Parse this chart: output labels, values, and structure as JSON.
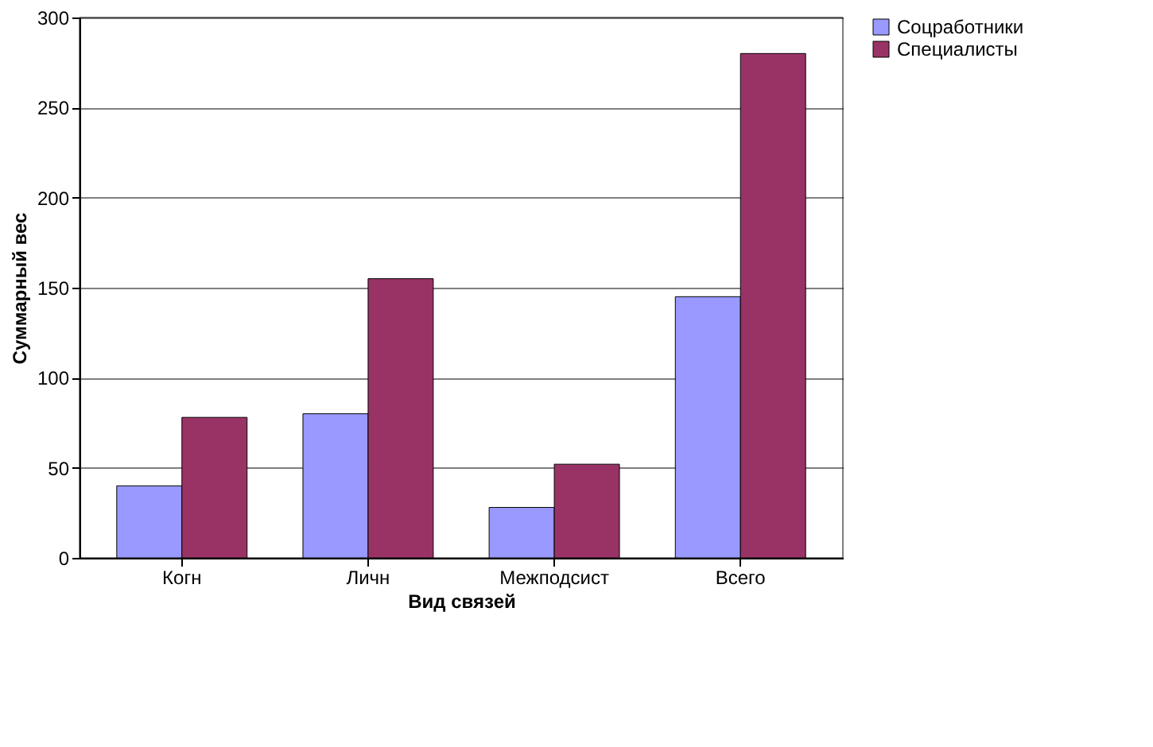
{
  "chart_data": {
    "type": "bar",
    "xlabel": "Вид связей",
    "ylabel": "Суммарный вес",
    "categories": [
      "Когн",
      "Личн",
      "Межподсист",
      "Всего"
    ],
    "series": [
      {
        "name": "Соцработники",
        "color": "#9999ff",
        "values": [
          40,
          80,
          28,
          145
        ]
      },
      {
        "name": "Специалисты",
        "color": "#993366",
        "values": [
          78,
          155,
          52,
          280
        ]
      }
    ],
    "ylim": [
      0,
      300
    ],
    "yticks": [
      0,
      50,
      100,
      150,
      200,
      250,
      300
    ],
    "grid": "y",
    "legend": "right"
  }
}
